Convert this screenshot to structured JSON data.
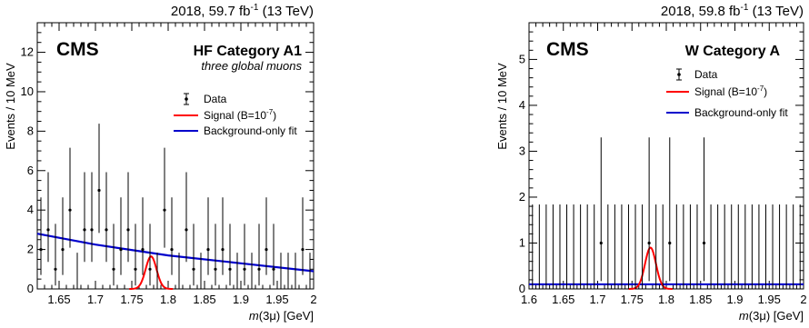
{
  "colors": {
    "signal": "#ff0000",
    "background_fit": "#0000cc",
    "data": "#000000"
  },
  "chart_data": [
    {
      "type": "scatter",
      "lumi": "2018, 59.7 fb",
      "lumi_sup": "-1",
      "lumi_energy": " (13 TeV)",
      "experiment": "CMS",
      "category": "HF Category A1",
      "subtitle": "three global muons",
      "ylabel": "Events / 10 MeV",
      "xlabel_italic": "m",
      "xlabel_rest": "(3μ) [GeV]",
      "xlim": [
        1.62,
        2.0
      ],
      "ylim": [
        0,
        13.5
      ],
      "xticks": [
        "1.65",
        "1.7",
        "1.75",
        "1.8",
        "1.85",
        "1.9",
        "1.95",
        "2"
      ],
      "yticks": [
        "0",
        "2",
        "4",
        "6",
        "8",
        "10",
        "12"
      ],
      "legend": {
        "data": "Data",
        "signal": "Signal (B=10",
        "signal_sup": "-7",
        "signal_end": ")",
        "background": "Background-only fit"
      },
      "data_x": [
        1.625,
        1.635,
        1.645,
        1.655,
        1.665,
        1.675,
        1.685,
        1.695,
        1.705,
        1.715,
        1.725,
        1.735,
        1.745,
        1.755,
        1.765,
        1.775,
        1.785,
        1.795,
        1.805,
        1.815,
        1.825,
        1.835,
        1.845,
        1.855,
        1.865,
        1.875,
        1.885,
        1.895,
        1.905,
        1.915,
        1.925,
        1.935,
        1.945,
        1.955,
        1.965,
        1.975,
        1.985,
        1.995
      ],
      "data_y": [
        2,
        3,
        1,
        2,
        4,
        0,
        3,
        3,
        5,
        3,
        1,
        2,
        3,
        1,
        2,
        1,
        0,
        4,
        2,
        0,
        3,
        1,
        0,
        2,
        1,
        2,
        1,
        0,
        1,
        0,
        1,
        2,
        1,
        0,
        0,
        0,
        2,
        0
      ],
      "background_fit": {
        "x": [
          1.62,
          1.7,
          1.8,
          1.9,
          2.0
        ],
        "y": [
          2.8,
          2.25,
          1.7,
          1.3,
          0.9
        ]
      },
      "signal": {
        "mean": 1.7765,
        "sigma": 0.0075,
        "amplitude": 1.65,
        "baseline_x": [
          1.7765
        ]
      }
    },
    {
      "type": "scatter",
      "lumi": "2018, 59.8 fb",
      "lumi_sup": "-1",
      "lumi_energy": " (13 TeV)",
      "experiment": "CMS",
      "category": "W Category A",
      "ylabel": "Events / 10 MeV",
      "xlabel_italic": "m",
      "xlabel_rest": "(3μ) [GeV]",
      "xlim": [
        1.6,
        2.0
      ],
      "ylim": [
        0,
        5.8
      ],
      "xticks": [
        "1.6",
        "1.65",
        "1.7",
        "1.75",
        "1.8",
        "1.85",
        "1.9",
        "1.95",
        "2"
      ],
      "yticks": [
        "0",
        "1",
        "2",
        "3",
        "4",
        "5"
      ],
      "legend": {
        "data": "Data",
        "signal": "Signal (B=10",
        "signal_sup": "-7",
        "signal_end": ")",
        "background": "Background-only fit"
      },
      "data_x": [
        1.605,
        1.615,
        1.625,
        1.635,
        1.645,
        1.655,
        1.665,
        1.675,
        1.685,
        1.695,
        1.705,
        1.715,
        1.725,
        1.735,
        1.745,
        1.755,
        1.765,
        1.775,
        1.785,
        1.795,
        1.805,
        1.815,
        1.825,
        1.835,
        1.845,
        1.855,
        1.865,
        1.875,
        1.885,
        1.895,
        1.905,
        1.915,
        1.925,
        1.935,
        1.945,
        1.955,
        1.965,
        1.975,
        1.985,
        1.995
      ],
      "data_y": [
        0,
        0,
        0,
        0,
        0,
        0,
        0,
        0,
        0,
        0,
        1,
        0,
        0,
        0,
        0,
        0,
        0,
        1,
        0,
        0,
        1,
        0,
        0,
        0,
        0,
        1,
        0,
        0,
        0,
        0,
        0,
        0,
        0,
        0,
        0,
        0,
        0,
        0,
        0,
        0
      ],
      "background_fit": {
        "x": [
          1.6,
          2.0
        ],
        "y": [
          0.1,
          0.1
        ]
      },
      "signal": {
        "mean": 1.777,
        "sigma": 0.008,
        "amplitude": 0.9,
        "baseline_x": [
          1.777
        ]
      }
    }
  ]
}
